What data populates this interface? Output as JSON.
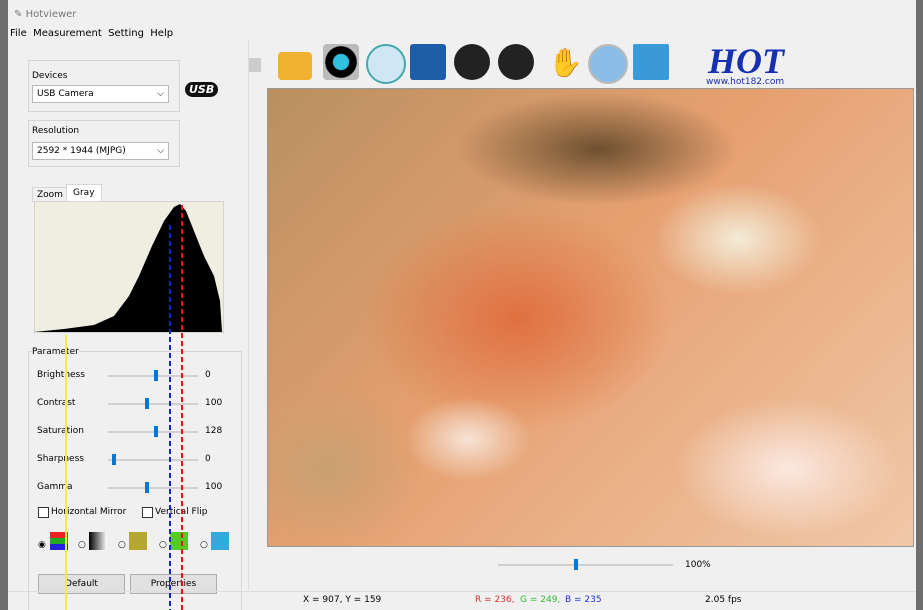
{
  "window": {
    "title": "Hotviewer"
  },
  "menu": [
    "File",
    "Measurement",
    "Setting",
    "Help"
  ],
  "devices": {
    "label": "Devices",
    "value": "USB Camera",
    "logo": "USB"
  },
  "resolution": {
    "label": "Resolution",
    "value": "2592 * 1944 (MJPG)"
  },
  "tabs": [
    "Zoom",
    "Gray"
  ],
  "parameters": {
    "title": "Parameter",
    "rows": [
      {
        "name": "Brightness",
        "value": 0
      },
      {
        "name": "Contrast",
        "value": 100
      },
      {
        "name": "Saturation",
        "value": 128
      },
      {
        "name": "Sharpness",
        "value": 0
      },
      {
        "name": "Gamma",
        "value": 100
      }
    ]
  },
  "checkboxes": [
    "Horizontal Mirror",
    "Vertical Flip"
  ],
  "buttons": [
    "Default",
    "Properties"
  ],
  "logo": {
    "text": "HOT",
    "url": "www.hot182.com"
  },
  "zoom": "100%",
  "status": {
    "coords": "X = 907, Y = 159",
    "r": "R = 236,",
    "g": "G = 249,",
    "b": "B = 235",
    "fps": "2.05 fps"
  }
}
